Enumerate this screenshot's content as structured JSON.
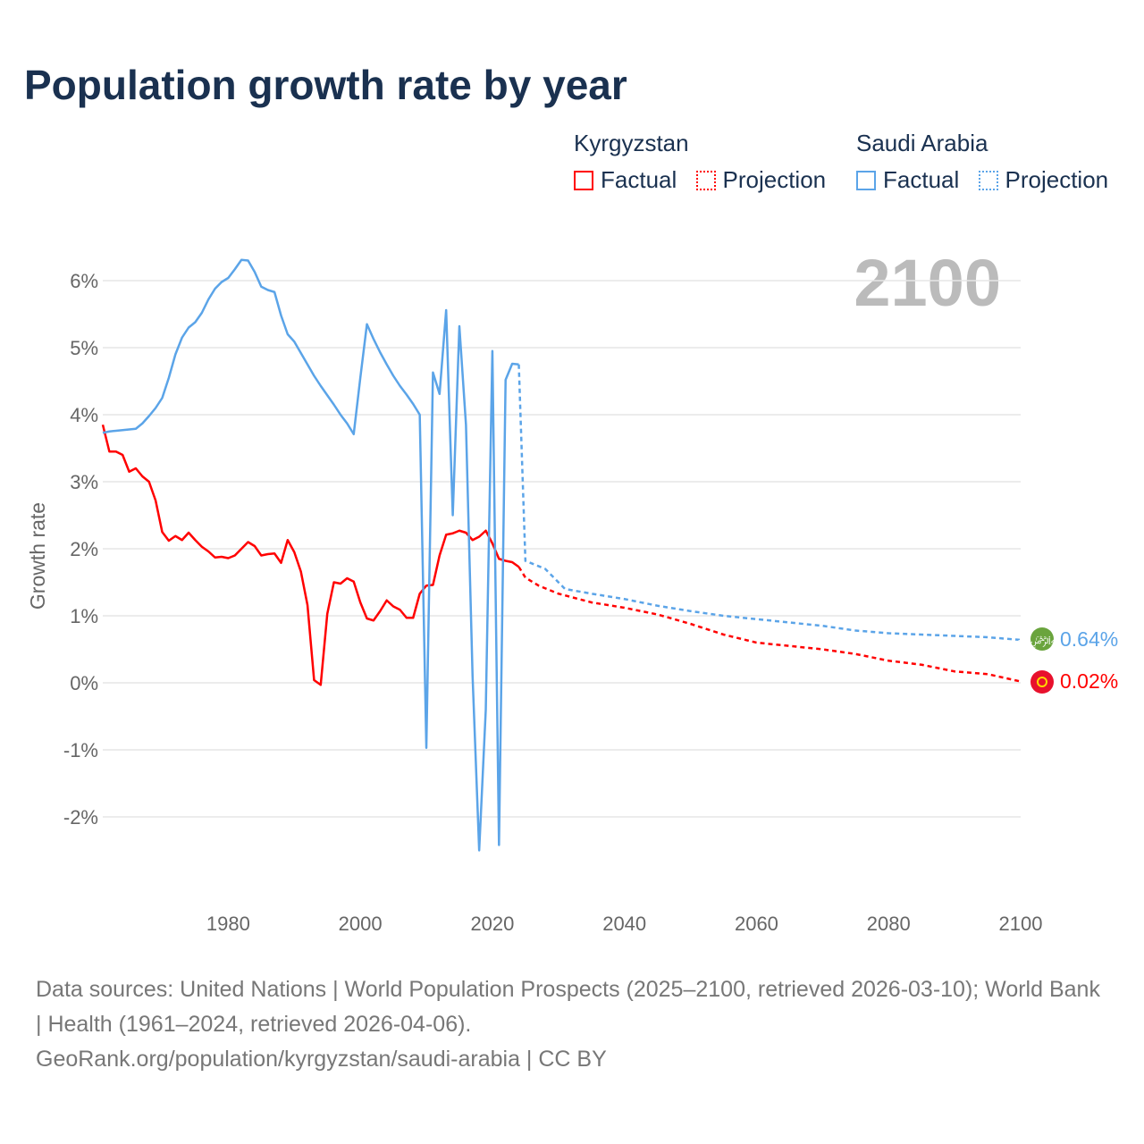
{
  "chart_data": {
    "type": "line",
    "title": "Population growth rate by year",
    "ylabel": "Growth rate",
    "xlabel": "",
    "xlim": [
      1961,
      2100
    ],
    "ylim": [
      -3,
      6.6
    ],
    "x_ticks": [
      "1980",
      "2000",
      "2020",
      "2040",
      "2060",
      "2080",
      "2100"
    ],
    "y_ticks": [
      "6%",
      "5%",
      "4%",
      "3%",
      "2%",
      "1%",
      "0%",
      "-1%",
      "-2%"
    ],
    "y_tick_values": [
      6,
      5,
      4,
      3,
      2,
      1,
      0,
      -1,
      -2
    ],
    "x_tick_values": [
      1980,
      2000,
      2020,
      2040,
      2060,
      2080,
      2100
    ],
    "year_watermark": "2100",
    "legend_groups": [
      {
        "name": "Kyrgyzstan",
        "factual": "Factual",
        "projection": "Projection"
      },
      {
        "name": "Saudi Arabia",
        "factual": "Factual",
        "projection": "Projection"
      }
    ],
    "series": [
      {
        "name": "Kyrgyzstan",
        "color": "#ff0000",
        "end_label": "0.02%",
        "factual_start": 1961,
        "factual": [
          3.85,
          3.45,
          3.45,
          3.4,
          3.15,
          3.2,
          3.08,
          3.0,
          2.72,
          2.25,
          2.12,
          2.19,
          2.13,
          2.24,
          2.13,
          2.03,
          1.96,
          1.87,
          1.88,
          1.86,
          1.9,
          2.0,
          2.1,
          2.04,
          1.9,
          1.92,
          1.93,
          1.79,
          2.13,
          1.95,
          1.66,
          1.16,
          0.04,
          -0.03,
          1.03,
          1.5,
          1.48,
          1.56,
          1.51,
          1.2,
          0.96,
          0.93,
          1.07,
          1.23,
          1.14,
          1.09,
          0.97,
          0.97,
          1.33,
          1.45,
          1.46,
          1.9,
          2.21,
          2.23,
          2.27,
          2.24,
          2.13,
          2.18,
          2.27,
          2.08,
          1.85,
          1.82,
          1.8,
          1.73
        ],
        "projection": [
          [
            2024,
            1.73
          ],
          [
            2025,
            1.57
          ],
          [
            2027,
            1.45
          ],
          [
            2030,
            1.33
          ],
          [
            2035,
            1.2
          ],
          [
            2040,
            1.12
          ],
          [
            2045,
            1.02
          ],
          [
            2050,
            0.88
          ],
          [
            2055,
            0.72
          ],
          [
            2060,
            0.6
          ],
          [
            2065,
            0.55
          ],
          [
            2070,
            0.5
          ],
          [
            2075,
            0.43
          ],
          [
            2080,
            0.33
          ],
          [
            2085,
            0.27
          ],
          [
            2090,
            0.17
          ],
          [
            2095,
            0.13
          ],
          [
            2100,
            0.02
          ]
        ]
      },
      {
        "name": "Saudi Arabia",
        "color": "#5ba4e8",
        "end_label": "0.64%",
        "factual_start": 1961,
        "factual": [
          3.73,
          3.75,
          3.76,
          3.77,
          3.78,
          3.79,
          3.87,
          3.98,
          4.1,
          4.25,
          4.55,
          4.9,
          5.15,
          5.3,
          5.38,
          5.52,
          5.72,
          5.88,
          5.98,
          6.04,
          6.17,
          6.31,
          6.3,
          6.13,
          5.91,
          5.86,
          5.83,
          5.48,
          5.2,
          5.09,
          4.92,
          4.75,
          4.58,
          4.43,
          4.29,
          4.15,
          4.0,
          3.87,
          3.71,
          4.55,
          5.35,
          5.13,
          4.93,
          4.75,
          4.58,
          4.43,
          4.3,
          4.16,
          4.0,
          -0.97,
          4.63,
          4.31,
          5.56,
          2.5,
          5.32,
          3.85,
          0.1,
          -2.5,
          -0.4,
          4.95,
          -2.42,
          4.52,
          4.76,
          4.75
        ],
        "projection": [
          [
            2024,
            4.75
          ],
          [
            2025,
            1.82
          ],
          [
            2028,
            1.7
          ],
          [
            2030,
            1.5
          ],
          [
            2031,
            1.4
          ],
          [
            2035,
            1.33
          ],
          [
            2040,
            1.25
          ],
          [
            2045,
            1.15
          ],
          [
            2050,
            1.07
          ],
          [
            2055,
            1.0
          ],
          [
            2060,
            0.95
          ],
          [
            2065,
            0.9
          ],
          [
            2070,
            0.85
          ],
          [
            2075,
            0.78
          ],
          [
            2080,
            0.74
          ],
          [
            2085,
            0.72
          ],
          [
            2090,
            0.7
          ],
          [
            2095,
            0.68
          ],
          [
            2100,
            0.64
          ]
        ]
      }
    ]
  },
  "footer": {
    "line1": "Data sources: United Nations | World Population Prospects (2025–2100, retrieved 2026-03-10); World Bank | Health (1961–2024, retrieved 2026-04-06).",
    "line2": "GeoRank.org/population/kyrgyzstan/saudi-arabia | CC BY"
  }
}
